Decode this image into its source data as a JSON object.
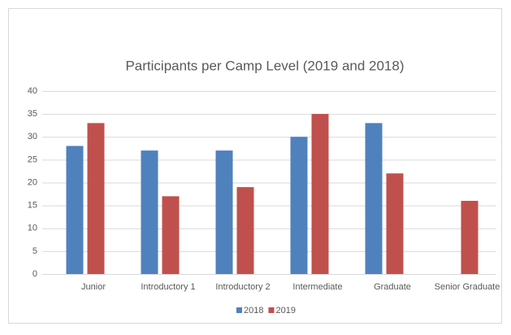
{
  "chart_data": {
    "type": "bar",
    "title": "Participants per Camp Level (2019 and 2018)",
    "categories": [
      "Junior",
      "Introductory 1",
      "Introductory 2",
      "Intermediate",
      "Graduate",
      "Senior Graduate"
    ],
    "series": [
      {
        "name": "2018",
        "color": "#4f81bd",
        "values": [
          28,
          27,
          27,
          30,
          33,
          null
        ]
      },
      {
        "name": "2019",
        "color": "#c0504d",
        "values": [
          33,
          17,
          19,
          35,
          22,
          16
        ]
      }
    ],
    "ylim": [
      0,
      40
    ],
    "yticks": [
      0,
      5,
      10,
      15,
      20,
      25,
      30,
      35,
      40
    ],
    "grid": true,
    "legend": "bottom"
  }
}
